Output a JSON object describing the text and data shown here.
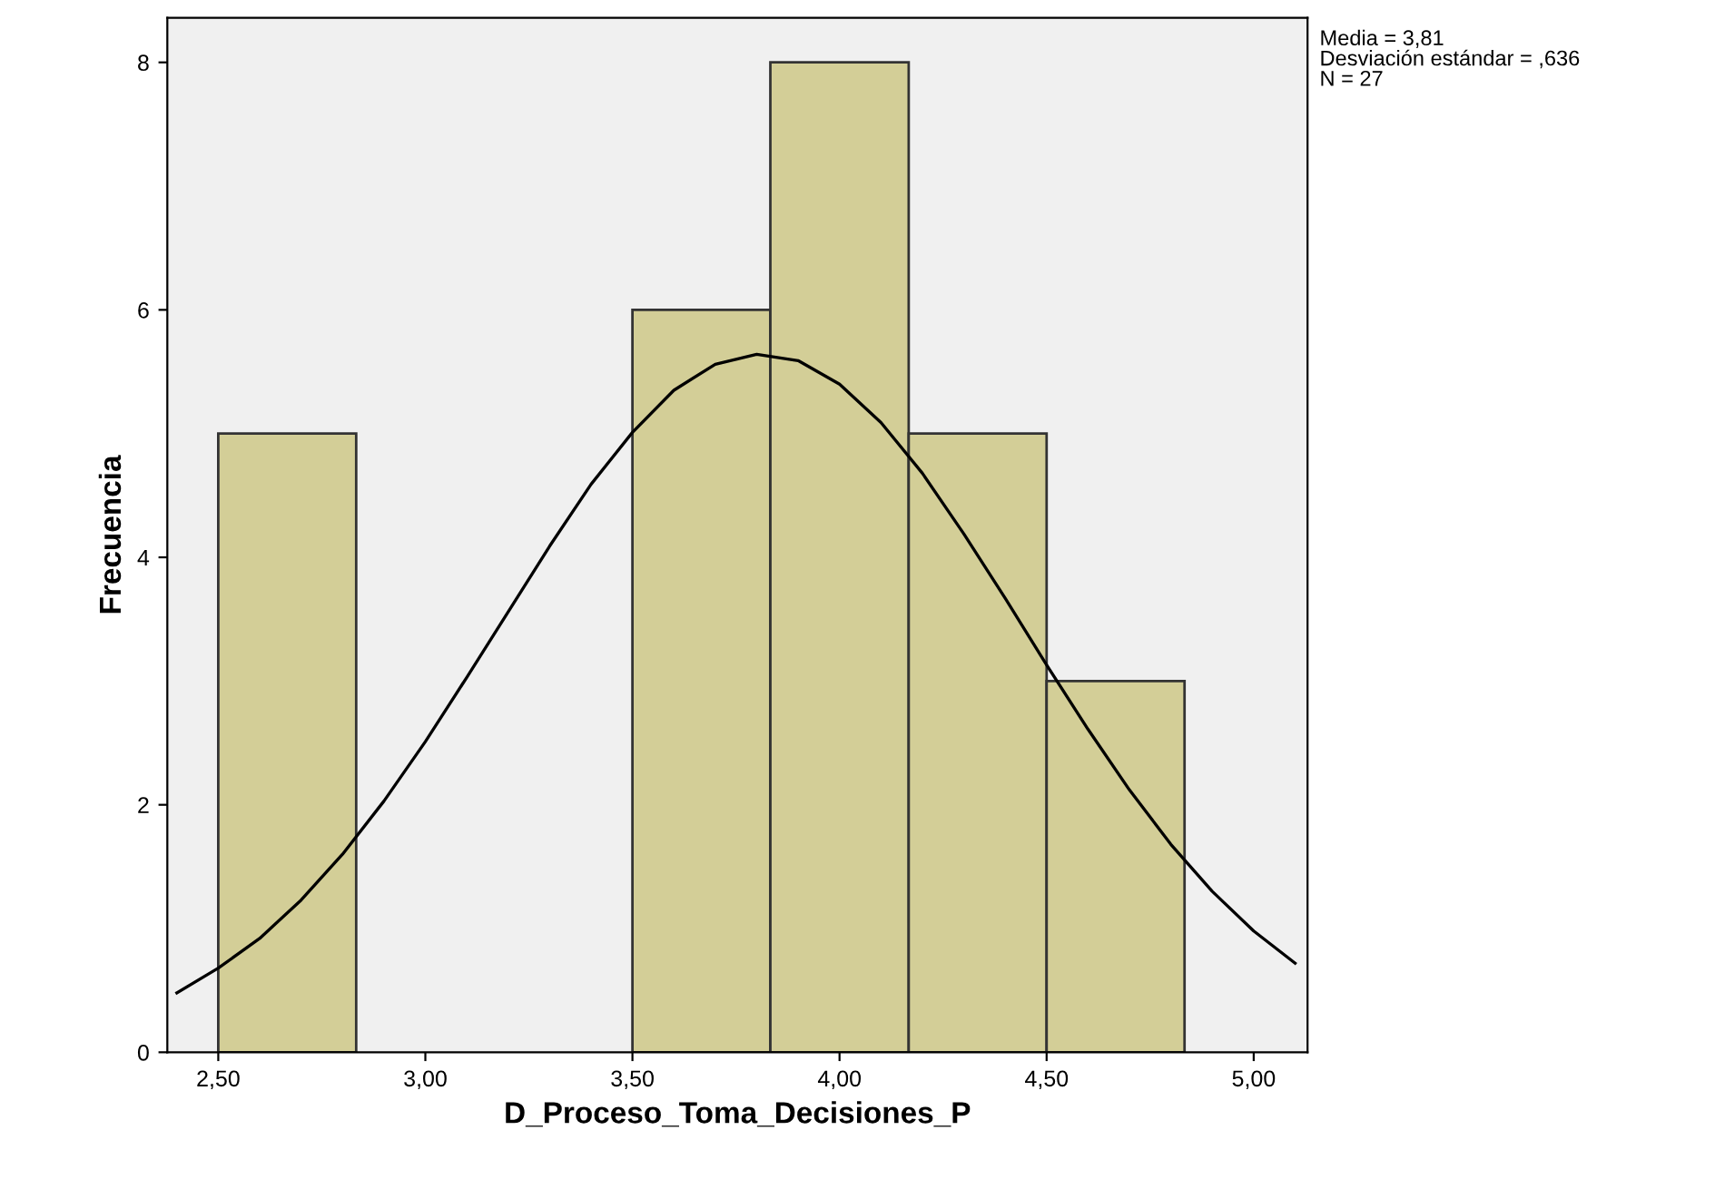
{
  "chart_data": {
    "type": "histogram",
    "xlabel": "D_Proceso_Toma_Decisiones_P",
    "ylabel": "Frecuencia",
    "bins": [
      2.5,
      2.833,
      3.167,
      3.5,
      3.833,
      4.167,
      4.5,
      4.833
    ],
    "values": [
      5,
      0,
      0,
      6,
      8,
      5,
      3
    ],
    "color": "#d3ce97",
    "series": [
      {
        "type": "line",
        "color": "#000000",
        "x": [
          2.4,
          2.5,
          2.6,
          2.7,
          2.8,
          2.9,
          3.0,
          3.1,
          3.2,
          3.3,
          3.4,
          3.5,
          3.6,
          3.7,
          3.8,
          3.9,
          4.0,
          4.1,
          4.2,
          4.3,
          4.4,
          4.5,
          4.6,
          4.7,
          4.8,
          4.9,
          5.0,
          5.1
        ],
        "values": [
          0.48,
          0.68,
          0.92,
          1.23,
          1.6,
          2.03,
          2.51,
          3.03,
          3.56,
          4.09,
          4.59,
          5.01,
          5.35,
          5.56,
          5.64,
          5.59,
          5.4,
          5.09,
          4.68,
          4.19,
          3.67,
          3.13,
          2.61,
          2.12,
          1.68,
          1.3,
          0.98,
          0.72
        ]
      }
    ],
    "xlim": [
      2.377,
      5.13
    ],
    "ylim": [
      0,
      8.36
    ],
    "xticks": [
      {
        "value": 2.5,
        "label": "2,50"
      },
      {
        "value": 3.0,
        "label": "3,00"
      },
      {
        "value": 3.5,
        "label": "3,50"
      },
      {
        "value": 4.0,
        "label": "4,00"
      },
      {
        "value": 4.5,
        "label": "4,50"
      },
      {
        "value": 5.0,
        "label": "5,00"
      }
    ],
    "yticks": [
      0,
      2,
      4,
      6,
      8
    ],
    "grid": false,
    "annotations": [
      "Media = 3,81",
      "Desviación estándar = ,636",
      "N = 27"
    ]
  }
}
